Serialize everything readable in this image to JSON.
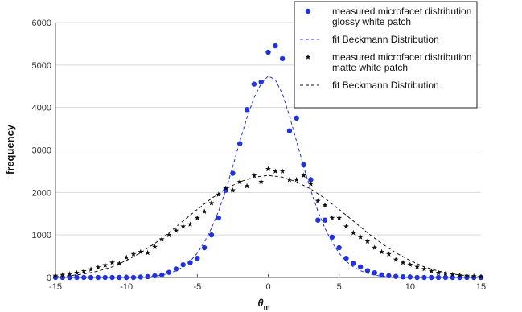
{
  "chart_data": {
    "type": "scatter",
    "xlabel": "θ",
    "xlabel_sub": "m",
    "ylabel": "frequency",
    "xlim": [
      -15,
      15
    ],
    "ylim": [
      0,
      6000
    ],
    "xticks": [
      -15,
      -10,
      -5,
      0,
      5,
      10,
      15
    ],
    "yticks": [
      0,
      1000,
      2000,
      3000,
      4000,
      5000,
      6000
    ],
    "grid": "horizontal",
    "legend_position": "top-right",
    "colors": {
      "glossy": "#2233dd",
      "matte": "#111111"
    },
    "series": [
      {
        "name": "measured microfacet distribution glossy white patch",
        "legend_lines": [
          "measured microfacet distribution",
          "glossy white patch"
        ],
        "kind": "points",
        "marker": "circle",
        "color": "#2233dd",
        "x": [
          -15,
          -14.5,
          -14,
          -13.5,
          -13,
          -12.5,
          -12,
          -11.5,
          -11,
          -10.5,
          -10,
          -9.5,
          -9,
          -8.5,
          -8,
          -7.5,
          -7,
          -6.5,
          -6,
          -5.5,
          -5,
          -4.5,
          -4,
          -3.5,
          -3,
          -2.5,
          -2,
          -1.5,
          -1,
          -0.5,
          0,
          0.5,
          1,
          1.5,
          2,
          2.5,
          3,
          3.5,
          4,
          4.5,
          5,
          5.5,
          6,
          6.5,
          7,
          7.5,
          8,
          8.5,
          9,
          9.5,
          10,
          10.5,
          11,
          11.5,
          12,
          12.5,
          13,
          13.5,
          14,
          14.5,
          15
        ],
        "y": [
          0,
          0,
          0,
          0,
          0,
          0,
          0,
          0,
          0,
          0,
          0,
          0,
          10,
          20,
          40,
          60,
          120,
          200,
          300,
          350,
          450,
          700,
          1000,
          1400,
          2050,
          2450,
          3150,
          3950,
          4550,
          4600,
          5300,
          5450,
          5150,
          3450,
          3750,
          2650,
          2300,
          1350,
          1350,
          950,
          700,
          450,
          330,
          250,
          160,
          110,
          60,
          40,
          25,
          15,
          10,
          0,
          0,
          0,
          0,
          0,
          0,
          0,
          0,
          0,
          0
        ]
      },
      {
        "name": "fit Beckmann Distribution",
        "legend_lines": [
          "fit Beckmann Distribution"
        ],
        "kind": "line",
        "dash": "dashed",
        "color": "#2233dd",
        "x": [
          -15,
          -12,
          -10,
          -9,
          -8,
          -7.5,
          -7,
          -6.5,
          -6,
          -5.5,
          -5,
          -4.5,
          -4,
          -3.5,
          -3,
          -2.5,
          -2,
          -1.5,
          -1,
          -0.5,
          0,
          0.5,
          1,
          1.5,
          2,
          2.5,
          3,
          3.5,
          4,
          4.5,
          5,
          5.5,
          6,
          6.5,
          7,
          7.5,
          8,
          9,
          10,
          12,
          15
        ],
        "y": [
          0,
          0,
          0,
          5,
          30,
          55,
          95,
          160,
          250,
          380,
          570,
          830,
          1160,
          1560,
          2050,
          2610,
          3200,
          3760,
          4230,
          4560,
          4740,
          4650,
          4320,
          3800,
          3200,
          2610,
          2050,
          1560,
          1160,
          830,
          570,
          380,
          250,
          160,
          95,
          55,
          30,
          5,
          0,
          0,
          0
        ]
      },
      {
        "name": "measured microfacet distribution matte white patch",
        "legend_lines": [
          "measured microfacet distribution",
          "matte white patch"
        ],
        "kind": "points",
        "marker": "star",
        "color": "#111111",
        "x": [
          -15,
          -14.5,
          -14,
          -13.5,
          -13,
          -12.5,
          -12,
          -11.5,
          -11,
          -10.5,
          -10,
          -9.5,
          -9,
          -8.5,
          -8,
          -7.5,
          -7,
          -6.5,
          -6,
          -5.5,
          -5,
          -4.5,
          -4,
          -3.5,
          -3,
          -2.5,
          -2,
          -1.5,
          -1,
          -0.5,
          0,
          0.5,
          1,
          1.5,
          2,
          2.5,
          3,
          3.5,
          4,
          4.5,
          5,
          5.5,
          6,
          6.5,
          7,
          7.5,
          8,
          8.5,
          9,
          9.5,
          10,
          10.5,
          11,
          11.5,
          12,
          12.5,
          13,
          13.5,
          14,
          14.5,
          15
        ],
        "y": [
          40,
          60,
          80,
          110,
          150,
          190,
          240,
          290,
          350,
          330,
          470,
          550,
          600,
          580,
          720,
          900,
          1000,
          1100,
          1200,
          1250,
          1400,
          1550,
          1750,
          1950,
          2100,
          2050,
          2250,
          2150,
          2400,
          2250,
          2550,
          2500,
          2500,
          2300,
          2300,
          2400,
          2200,
          1800,
          1700,
          1400,
          1400,
          1200,
          1050,
          950,
          850,
          700,
          600,
          550,
          420,
          350,
          300,
          250,
          200,
          150,
          110,
          90,
          70,
          50,
          40,
          30,
          20
        ]
      },
      {
        "name": "fit Beckmann Distribution",
        "legend_lines": [
          "fit Beckmann Distribution"
        ],
        "kind": "line",
        "dash": "dashed",
        "color": "#111111",
        "x": [
          -15,
          -14,
          -13,
          -12,
          -11,
          -10,
          -9,
          -8,
          -7,
          -6,
          -5,
          -4,
          -3,
          -2,
          -1,
          0,
          1,
          2,
          3,
          4,
          5,
          6,
          7,
          8,
          9,
          10,
          11,
          12,
          13,
          14,
          15
        ],
        "y": [
          15,
          40,
          80,
          150,
          250,
          400,
          580,
          800,
          1050,
          1330,
          1600,
          1860,
          2080,
          2250,
          2360,
          2400,
          2360,
          2250,
          2080,
          1860,
          1600,
          1330,
          1050,
          800,
          580,
          400,
          250,
          150,
          80,
          40,
          15
        ]
      }
    ]
  }
}
